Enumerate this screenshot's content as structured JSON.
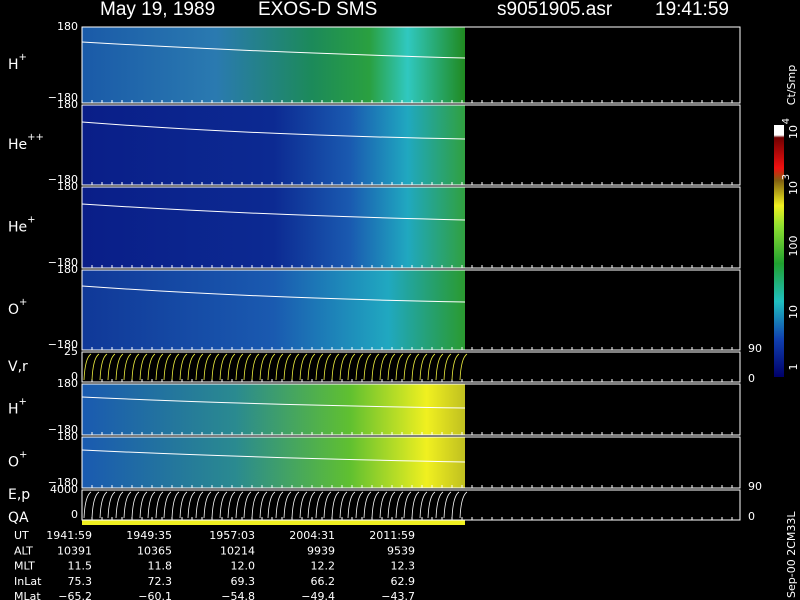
{
  "header": {
    "date": "May 19, 1989",
    "instrument": "EXOS-D SMS",
    "file": "s9051905.asr",
    "time": "19:41:59"
  },
  "panels": [
    {
      "label": "H",
      "sup": "+",
      "top": "180",
      "bottom": "−180"
    },
    {
      "label": "He",
      "sup": "++",
      "top": "180",
      "bottom": "−180"
    },
    {
      "label": "He",
      "sup": "+",
      "top": "180",
      "bottom": "−180"
    },
    {
      "label": "O",
      "sup": "+",
      "top": "180",
      "bottom": "−180"
    },
    {
      "label": "V,r",
      "top": "25",
      "bottom": "0",
      "right_top": "90",
      "right_bottom": "0"
    },
    {
      "label": "H",
      "sup": "+",
      "top": "180",
      "bottom": "−180"
    },
    {
      "label": "O",
      "sup": "+",
      "top": "180",
      "bottom": "−180"
    },
    {
      "label": "E,p",
      "label2": "QA",
      "top": "4000",
      "bottom": "0",
      "right_top": "90",
      "right_bottom": "0"
    }
  ],
  "colorbar": {
    "unit": "Ct/Smp",
    "labels": [
      {
        "base": "1"
      },
      {
        "base": "10"
      },
      {
        "base": "100"
      },
      {
        "base": "10",
        "exp": "3"
      },
      {
        "base": "10",
        "exp": "4"
      }
    ]
  },
  "table": {
    "rows": [
      {
        "label": "UT",
        "values": [
          "1941:59",
          "1949:35",
          "1957:03",
          "2004:31",
          "2011:59"
        ]
      },
      {
        "label": "ALT",
        "values": [
          "10391",
          "10365",
          "10214",
          "9939",
          "9539"
        ]
      },
      {
        "label": "MLT",
        "values": [
          "11.5",
          "11.8",
          "12.0",
          "12.2",
          "12.3"
        ]
      },
      {
        "label": "InLat",
        "values": [
          "75.3",
          "72.3",
          "69.3",
          "66.2",
          "62.9"
        ]
      },
      {
        "label": "MLat",
        "values": [
          "−65.2",
          "−60.1",
          "−54.8",
          "−49.4",
          "−43.7"
        ]
      }
    ]
  },
  "footer": "Sep-00 2CM33L"
}
